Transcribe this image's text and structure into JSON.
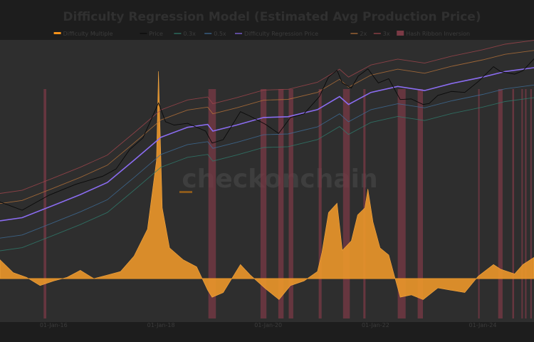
{
  "chart_data": {
    "type": "line",
    "title": "Difficulty Regression Model (Estimated Avg Production Price)",
    "watermark": "checkonchain",
    "legend": [
      {
        "name": "Difficulty Multiple",
        "color": "#f7931a",
        "kind": "bar"
      },
      {
        "name": "Price",
        "color": "#0a0a0a",
        "kind": "line"
      },
      {
        "name": "0.3x",
        "color": "#2e7d6e",
        "kind": "line"
      },
      {
        "name": "0.5x",
        "color": "#3f6e9a",
        "kind": "line"
      },
      {
        "name": "Difficulty Regression Price",
        "color": "#8a6cf0",
        "kind": "line"
      },
      {
        "name": "2x",
        "color": "#b8733a",
        "kind": "line"
      },
      {
        "name": "3x",
        "color": "#a2464c",
        "kind": "line"
      },
      {
        "name": "Hash Ribbon Inversion",
        "color": "#7a3a45",
        "kind": "box"
      }
    ],
    "x_ticks": [
      "01-Jan-16",
      "01-Jan-18",
      "01-Jan-20",
      "01-Jan-22",
      "01-Jan-24"
    ],
    "x_range": [
      "2015-01-01",
      "2024-12-15"
    ],
    "y_scale": "log",
    "grid": false,
    "legend_position": "top",
    "price_series": [
      [
        "2015-01-01",
        320
      ],
      [
        "2015-06-01",
        230
      ],
      [
        "2015-12-01",
        420
      ],
      [
        "2016-06-01",
        650
      ],
      [
        "2016-12-01",
        900
      ],
      [
        "2017-03-01",
        1200
      ],
      [
        "2017-06-01",
        2600
      ],
      [
        "2017-09-01",
        4200
      ],
      [
        "2017-12-15",
        17000
      ],
      [
        "2018-02-01",
        8000
      ],
      [
        "2018-04-01",
        7000
      ],
      [
        "2018-07-01",
        7500
      ],
      [
        "2018-11-01",
        5500
      ],
      [
        "2018-12-15",
        3400
      ],
      [
        "2019-03-01",
        3900
      ],
      [
        "2019-06-26",
        12000
      ],
      [
        "2019-09-01",
        10000
      ],
      [
        "2019-12-15",
        7200
      ],
      [
        "2020-03-12",
        5000
      ],
      [
        "2020-06-01",
        9500
      ],
      [
        "2020-09-01",
        11000
      ],
      [
        "2020-12-15",
        22000
      ],
      [
        "2021-02-15",
        48000
      ],
      [
        "2021-04-14",
        63000
      ],
      [
        "2021-05-20",
        38000
      ],
      [
        "2021-07-20",
        31000
      ],
      [
        "2021-09-05",
        50000
      ],
      [
        "2021-11-10",
        67000
      ],
      [
        "2022-01-20",
        38000
      ],
      [
        "2022-04-01",
        45000
      ],
      [
        "2022-06-18",
        19500
      ],
      [
        "2022-09-01",
        20000
      ],
      [
        "2022-11-21",
        16000
      ],
      [
        "2023-01-01",
        16600
      ],
      [
        "2023-03-01",
        23000
      ],
      [
        "2023-06-01",
        27000
      ],
      [
        "2023-09-01",
        26000
      ],
      [
        "2023-12-01",
        40000
      ],
      [
        "2024-03-14",
        73000
      ],
      [
        "2024-05-01",
        60000
      ],
      [
        "2024-08-05",
        54000
      ],
      [
        "2024-10-01",
        62000
      ],
      [
        "2024-12-15",
        100000
      ]
    ],
    "regression_series": [
      [
        "2015-01-01",
        150
      ],
      [
        "2015-06-01",
        170
      ],
      [
        "2016-01-01",
        280
      ],
      [
        "2016-07-01",
        430
      ],
      [
        "2017-01-01",
        700
      ],
      [
        "2017-07-01",
        1700
      ],
      [
        "2018-01-01",
        4300
      ],
      [
        "2018-07-01",
        6400
      ],
      [
        "2018-11-15",
        7200
      ],
      [
        "2018-12-20",
        5500
      ],
      [
        "2019-06-01",
        7000
      ],
      [
        "2019-12-01",
        9500
      ],
      [
        "2020-05-15",
        9800
      ],
      [
        "2020-12-01",
        13000
      ],
      [
        "2021-05-01",
        22000
      ],
      [
        "2021-07-01",
        16000
      ],
      [
        "2021-12-01",
        26000
      ],
      [
        "2022-06-01",
        33000
      ],
      [
        "2022-12-01",
        28000
      ],
      [
        "2023-06-01",
        37000
      ],
      [
        "2024-01-01",
        48000
      ],
      [
        "2024-06-01",
        60000
      ],
      [
        "2024-12-15",
        70000
      ]
    ],
    "band_multipliers": {
      "0.3x": 0.3,
      "0.5x": 0.5,
      "2x": 2,
      "3x": 3
    },
    "difficulty_multiple_series": [
      [
        "2015-01-01",
        1.8
      ],
      [
        "2015-04-01",
        1.25
      ],
      [
        "2015-07-01",
        1.05
      ],
      [
        "2015-10-01",
        0.85
      ],
      [
        "2016-01-01",
        0.95
      ],
      [
        "2016-04-01",
        1.05
      ],
      [
        "2016-07-01",
        1.35
      ],
      [
        "2016-10-01",
        1.0
      ],
      [
        "2017-01-01",
        1.15
      ],
      [
        "2017-04-01",
        1.3
      ],
      [
        "2017-07-01",
        1.95
      ],
      [
        "2017-10-01",
        3.1
      ],
      [
        "2017-12-01",
        6.0
      ],
      [
        "2017-12-15",
        9.8
      ],
      [
        "2018-01-10",
        4.0
      ],
      [
        "2018-03-01",
        2.3
      ],
      [
        "2018-06-01",
        1.8
      ],
      [
        "2018-09-01",
        1.5
      ],
      [
        "2018-11-15",
        0.75
      ],
      [
        "2018-12-15",
        0.6
      ],
      [
        "2019-03-01",
        0.7
      ],
      [
        "2019-06-26",
        1.6
      ],
      [
        "2019-09-01",
        1.15
      ],
      [
        "2019-12-15",
        0.78
      ],
      [
        "2020-03-15",
        0.55
      ],
      [
        "2020-06-01",
        0.85
      ],
      [
        "2020-09-01",
        0.95
      ],
      [
        "2020-12-01",
        1.3
      ],
      [
        "2021-01-01",
        2.1
      ],
      [
        "2021-02-15",
        3.8
      ],
      [
        "2021-04-14",
        4.2
      ],
      [
        "2021-05-20",
        2.2
      ],
      [
        "2021-07-20",
        2.6
      ],
      [
        "2021-09-01",
        3.7
      ],
      [
        "2021-10-20",
        4.0
      ],
      [
        "2021-11-10",
        4.8
      ],
      [
        "2021-12-15",
        3.4
      ],
      [
        "2022-02-01",
        2.3
      ],
      [
        "2022-04-01",
        2.0
      ],
      [
        "2022-06-18",
        0.6
      ],
      [
        "2022-09-01",
        0.65
      ],
      [
        "2022-11-21",
        0.55
      ],
      [
        "2023-03-01",
        0.8
      ],
      [
        "2023-06-01",
        0.75
      ],
      [
        "2023-09-01",
        0.7
      ],
      [
        "2023-12-01",
        1.1
      ],
      [
        "2024-03-14",
        1.6
      ],
      [
        "2024-05-01",
        1.4
      ],
      [
        "2024-08-05",
        1.2
      ],
      [
        "2024-10-01",
        1.6
      ],
      [
        "2024-12-15",
        1.9
      ]
    ],
    "difficulty_multiple_baseline": 1,
    "hash_ribbon_inversions": [
      [
        "2015-10-25",
        "2015-11-12"
      ],
      [
        "2018-11-20",
        "2019-01-10"
      ],
      [
        "2019-11-10",
        "2019-12-20"
      ],
      [
        "2020-03-10",
        "2020-04-15"
      ],
      [
        "2020-05-20",
        "2020-06-20"
      ],
      [
        "2020-12-10",
        "2020-12-30"
      ],
      [
        "2021-05-25",
        "2021-07-10"
      ],
      [
        "2021-10-10",
        "2021-10-25"
      ],
      [
        "2022-06-01",
        "2022-07-25"
      ],
      [
        "2022-10-15",
        "2022-11-20"
      ],
      [
        "2023-12-01",
        "2023-12-10"
      ],
      [
        "2024-04-15",
        "2024-05-15"
      ],
      [
        "2024-07-20",
        "2024-08-01"
      ],
      [
        "2024-09-20",
        "2024-09-30"
      ],
      [
        "2024-10-15",
        "2024-10-25"
      ],
      [
        "2024-11-20",
        "2024-11-30"
      ]
    ]
  }
}
